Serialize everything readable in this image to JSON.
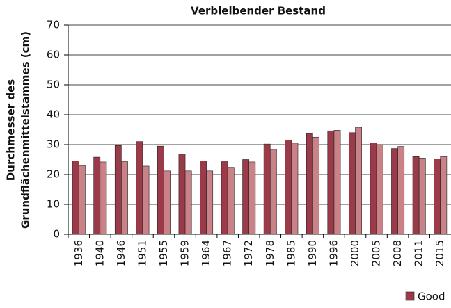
{
  "chart_data": {
    "type": "bar",
    "title": "Verbleibender Bestand",
    "ylabel": [
      "Durchmesser des",
      "Grundflächenmittelstammes (cm)"
    ],
    "categories": [
      "1936",
      "1940",
      "1946",
      "1951",
      "1955",
      "1959",
      "1964",
      "1967",
      "1972",
      "1978",
      "1985",
      "1990",
      "1996",
      "2000",
      "2005",
      "2008",
      "2011",
      "2015"
    ],
    "series": [
      {
        "name": "Good",
        "color": "#9b3a48",
        "values": [
          24.5,
          25.8,
          29.7,
          31,
          29.5,
          26.8,
          24.5,
          24.3,
          25,
          30.2,
          31.5,
          33.7,
          34.6,
          34,
          30.6,
          28.7,
          26,
          25.2
        ]
      },
      {
        "color": "#c98388",
        "values": [
          23,
          24.2,
          24.3,
          22.8,
          21.2,
          21.2,
          21.2,
          22.4,
          24.2,
          28.4,
          30.5,
          32.5,
          34.8,
          35.8,
          30,
          29.4,
          25.5,
          26
        ]
      }
    ],
    "ylim": [
      0,
      70
    ],
    "yticks": [
      0,
      10,
      20,
      30,
      40,
      50,
      60,
      70
    ],
    "grid": true
  }
}
